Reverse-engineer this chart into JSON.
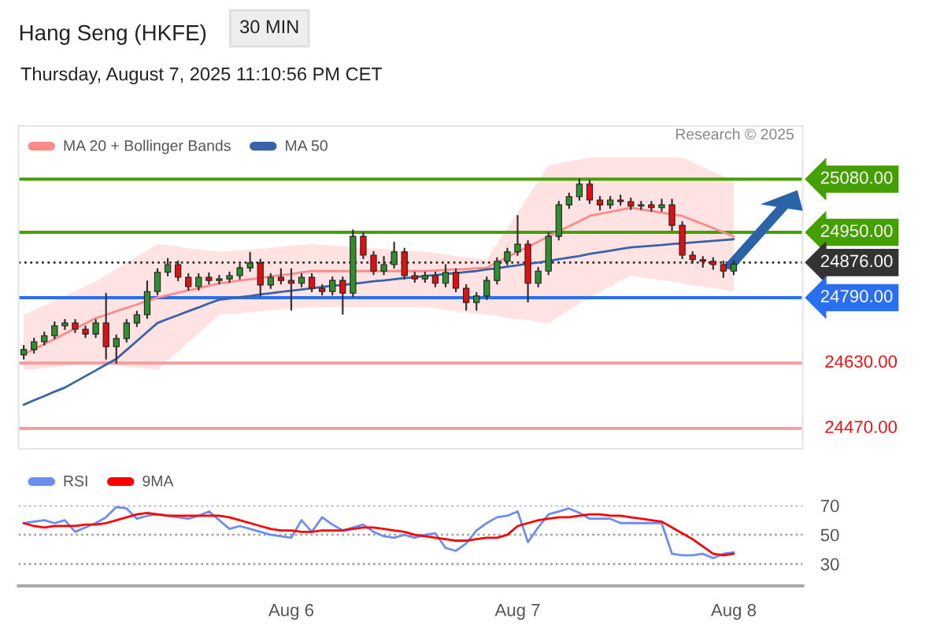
{
  "chart_data": [
    {
      "type": "candlestick",
      "title": "Hang Seng (HKFE)",
      "annotations": [
        "30 MIN",
        "Thursday, August 7, 2025 11:10:56 PM CET",
        "Research © 2025"
      ],
      "categories": [
        null,
        null,
        null,
        null,
        null,
        null,
        null,
        null,
        null,
        null,
        null,
        null,
        null,
        null,
        null,
        null,
        null,
        null,
        null,
        null,
        null,
        null,
        null,
        null,
        null,
        null,
        null,
        null,
        null,
        null,
        null,
        null,
        null,
        null,
        null,
        null,
        null,
        null,
        null,
        null,
        null,
        null,
        null,
        null,
        null,
        null,
        null,
        null,
        null,
        null,
        null,
        null,
        null,
        null,
        null,
        null,
        null,
        null,
        null,
        null,
        null,
        null,
        null,
        null,
        null,
        null,
        null,
        null,
        null,
        null
      ],
      "ohlc": [
        [
          24650,
          24672,
          24640,
          24663
        ],
        [
          24663,
          24690,
          24655,
          24682
        ],
        [
          24682,
          24705,
          24675,
          24697
        ],
        [
          24697,
          24730,
          24690,
          24721
        ],
        [
          24721,
          24736,
          24713,
          24728
        ],
        [
          24728,
          24736,
          24705,
          24713
        ],
        [
          24713,
          24720,
          24693,
          24701
        ],
        [
          24701,
          24736,
          24693,
          24728
        ],
        [
          24728,
          24800,
          24640,
          24670
        ],
        [
          24670,
          24698,
          24630,
          24690
        ],
        [
          24690,
          24736,
          24682,
          24728
        ],
        [
          24728,
          24756,
          24720,
          24748
        ],
        [
          24748,
          24830,
          24740,
          24805
        ],
        [
          24805,
          24860,
          24797,
          24852
        ],
        [
          24852,
          24885,
          24844,
          24871
        ],
        [
          24871,
          24879,
          24832,
          24840
        ],
        [
          24840,
          24848,
          24809,
          24817
        ],
        [
          24817,
          24848,
          24809,
          24840
        ],
        [
          24840,
          24850,
          24824,
          24832
        ],
        [
          24832,
          24844,
          24824,
          24836
        ],
        [
          24836,
          24852,
          24828,
          24844
        ],
        [
          24844,
          24871,
          24836,
          24863
        ],
        [
          24863,
          24900,
          24855,
          24875
        ],
        [
          24875,
          24883,
          24795,
          24821
        ],
        [
          24821,
          24848,
          24813,
          24840
        ],
        [
          24840,
          24860,
          24824,
          24832
        ],
        [
          24832,
          24860,
          24760,
          24825
        ],
        [
          24825,
          24848,
          24817,
          24840
        ],
        [
          24840,
          24848,
          24805,
          24813
        ],
        [
          24813,
          24821,
          24797,
          24805
        ],
        [
          24805,
          24840,
          24797,
          24832
        ],
        [
          24832,
          24840,
          24750,
          24801
        ],
        [
          24801,
          24955,
          24793,
          24940
        ],
        [
          24940,
          24948,
          24886,
          24894
        ],
        [
          24894,
          24902,
          24847,
          24855
        ],
        [
          24855,
          24890,
          24847,
          24871
        ],
        [
          24871,
          24925,
          24863,
          24902
        ],
        [
          24902,
          24910,
          24836,
          24844
        ],
        [
          24844,
          24852,
          24828,
          24836
        ],
        [
          24836,
          24852,
          24828,
          24844
        ],
        [
          24844,
          24852,
          24817,
          24825
        ],
        [
          24825,
          24870,
          24817,
          24852
        ],
        [
          24852,
          24860,
          24805,
          24813
        ],
        [
          24813,
          24821,
          24760,
          24778
        ],
        [
          24778,
          24802,
          24760,
          24794
        ],
        [
          24794,
          24840,
          24786,
          24832
        ],
        [
          24832,
          24887,
          24824,
          24879
        ],
        [
          24879,
          24910,
          24871,
          24902
        ],
        [
          24902,
          24990,
          24894,
          24921
        ],
        [
          24921,
          24929,
          24780,
          24825
        ],
        [
          24825,
          24863,
          24817,
          24855
        ],
        [
          24855,
          24948,
          24847,
          24940
        ],
        [
          24940,
          25025,
          24932,
          25017
        ],
        [
          25017,
          25045,
          25009,
          25037
        ],
        [
          25037,
          25080,
          25029,
          25068
        ],
        [
          25068,
          25076,
          25021,
          25029
        ],
        [
          25029,
          25037,
          25005,
          25017
        ],
        [
          25017,
          25037,
          25009,
          25029
        ],
        [
          25029,
          25040,
          25017,
          25025
        ],
        [
          25025,
          25033,
          25006,
          25014
        ],
        [
          25014,
          25025,
          25006,
          25017
        ],
        [
          25017,
          25025,
          25002,
          25010
        ],
        [
          25010,
          25030,
          25002,
          25017
        ],
        [
          25017,
          25030,
          24955,
          24967
        ],
        [
          24967,
          24975,
          24886,
          24894
        ],
        [
          24894,
          24902,
          24875,
          24883
        ],
        [
          24883,
          24890,
          24865,
          24879
        ],
        [
          24879,
          24887,
          24860,
          24871
        ],
        [
          24871,
          24879,
          24840,
          24855
        ],
        [
          24855,
          24880,
          24847,
          24872
        ]
      ],
      "series": [
        {
          "name": "MA 20 + Bollinger Bands",
          "type": "line",
          "color": "#ff8a8a",
          "values": [
            24651,
            24664,
            24676,
            24689,
            24702,
            24715,
            24727,
            24740,
            24748,
            24757,
            24765,
            24773,
            24782,
            24790,
            24796,
            24802,
            24808,
            24813,
            24819,
            24825,
            24828,
            24832,
            24835,
            24838,
            24842,
            24845,
            24848,
            24852,
            24855,
            24855,
            24855,
            24855,
            24855,
            24855,
            24855,
            24855,
            24855,
            24855,
            24855,
            24855,
            24856,
            24858,
            24859,
            24860,
            24862,
            24863,
            24876,
            24889,
            24902,
            24914,
            24927,
            24940,
            24952,
            24965,
            24977,
            24990,
            24995,
            25000,
            25005,
            25010,
            25006,
            25002,
            24998,
            24994,
            24990,
            24980,
            24970,
            24960,
            24950,
            24940
          ],
          "lower": [
            24613,
            24615,
            24618,
            24620,
            24623,
            24625,
            24628,
            24630,
            24627,
            24624,
            24622,
            24619,
            24616,
            24613,
            24636,
            24658,
            24681,
            24703,
            24726,
            24748,
            24750,
            24752,
            24754,
            24757,
            24759,
            24761,
            24763,
            24765,
            24767,
            24767,
            24767,
            24767,
            24767,
            24767,
            24767,
            24767,
            24767,
            24767,
            24767,
            24767,
            24764,
            24760,
            24757,
            24754,
            24751,
            24748,
            24745,
            24741,
            24738,
            24735,
            24731,
            24728,
            24744,
            24759,
            24775,
            24790,
            24804,
            24817,
            24831,
            24844,
            24840,
            24836,
            24833,
            24829,
            24825,
            24821,
            24817,
            24813,
            24809,
            24805
          ],
          "upper": [
            24748,
            24760,
            24771,
            24783,
            24795,
            24806,
            24818,
            24830,
            24845,
            24860,
            24876,
            24891,
            24906,
            24921,
            24918,
            24915,
            24911,
            24908,
            24905,
            24902,
            24904,
            24906,
            24908,
            24910,
            24912,
            24915,
            24917,
            24919,
            24921,
            24919,
            24918,
            24916,
            24914,
            24912,
            24911,
            24909,
            24907,
            24905,
            24904,
            24902,
            24899,
            24896,
            24892,
            24889,
            24886,
            24883,
            24922,
            24960,
            24999,
            25037,
            25076,
            25114,
            25119,
            25124,
            25128,
            25133,
            25133,
            25133,
            25133,
            25133,
            25133,
            25133,
            25133,
            25133,
            25133,
            25121,
            25110,
            25098,
            25087,
            25075
          ]
        },
        {
          "name": "MA 50",
          "type": "line",
          "color": "#3a62a8",
          "values": [
            24528,
            24539,
            24549,
            24560,
            24570,
            24584,
            24598,
            24612,
            24626,
            24640,
            24662,
            24684,
            24706,
            24728,
            24738,
            24747,
            24757,
            24766,
            24776,
            24785,
            24788,
            24791,
            24794,
            24798,
            24801,
            24804,
            24807,
            24810,
            24813,
            24816,
            24819,
            24821,
            24824,
            24827,
            24830,
            24832,
            24835,
            24838,
            24840,
            24843,
            24845,
            24848,
            24850,
            24853,
            24855,
            24859,
            24862,
            24866,
            24869,
            24873,
            24876,
            24880,
            24884,
            24888,
            24892,
            24897,
            24901,
            24905,
            24909,
            24913,
            24915,
            24917,
            24919,
            24921,
            24923,
            24925,
            24927,
            24929,
            24931,
            24933
          ]
        }
      ],
      "ref_lines": [
        {
          "axis": "y",
          "value": 25080,
          "label": "25080.00",
          "color": "#44a000"
        },
        {
          "axis": "y",
          "value": 24950,
          "label": "24950.00",
          "color": "#44a000"
        },
        {
          "axis": "y",
          "value": 24876,
          "label": "24876.00",
          "color": "#333333",
          "line_style": "dotted"
        },
        {
          "axis": "y",
          "value": 24790,
          "label": "24790.00",
          "color": "#2a6ff0"
        },
        {
          "axis": "y",
          "value": 24630,
          "label": "24630.00",
          "color": "#f4a0a0"
        },
        {
          "axis": "y",
          "value": 24470,
          "label": "24470.00",
          "color": "#f4a0a0"
        }
      ],
      "ylim": [
        24420,
        25210
      ],
      "tick_labels": false,
      "legend": "top left"
    },
    {
      "type": "line",
      "categories": [
        null,
        null,
        null,
        null,
        null,
        null,
        null,
        null,
        null,
        null,
        null,
        null,
        null,
        null,
        null,
        null,
        null,
        null,
        null,
        null,
        null,
        null,
        null,
        null,
        null,
        null,
        "Aug 6",
        null,
        null,
        null,
        null,
        null,
        null,
        null,
        null,
        null,
        null,
        null,
        null,
        null,
        null,
        null,
        null,
        null,
        null,
        null,
        null,
        null,
        "Aug 7",
        null,
        null,
        null,
        null,
        null,
        null,
        null,
        null,
        null,
        null,
        null,
        null,
        null,
        null,
        null,
        null,
        null,
        null,
        null,
        null,
        "Aug 8"
      ],
      "series": [
        {
          "name": "RSI",
          "color": "#6d8ef0",
          "values": [
            58,
            59,
            60,
            58,
            60,
            52,
            55,
            58,
            62,
            69,
            68,
            61,
            63,
            64,
            63,
            62,
            61,
            63,
            66,
            60,
            54,
            56,
            54,
            52,
            50,
            49,
            48,
            60,
            52,
            62,
            57,
            53,
            55,
            57,
            52,
            49,
            48,
            50,
            48,
            50,
            51,
            41,
            39,
            44,
            53,
            58,
            62,
            63,
            66,
            45,
            55,
            64,
            66,
            68,
            65,
            61,
            61,
            61,
            58,
            58,
            58,
            58,
            58,
            37,
            36,
            36,
            37,
            34,
            37,
            38
          ]
        },
        {
          "name": "9MA",
          "color": "#ff0000",
          "values": [
            58,
            56,
            55,
            56,
            56,
            56,
            57,
            57,
            58,
            60,
            62,
            64,
            65,
            64,
            63,
            63,
            63,
            63,
            63,
            63,
            62,
            60,
            58,
            56,
            54,
            53,
            53,
            52,
            52,
            53,
            53,
            53,
            54,
            55,
            55,
            54,
            53,
            52,
            50,
            49,
            48,
            47,
            46,
            46,
            47,
            48,
            48,
            50,
            56,
            58,
            60,
            61,
            62,
            62,
            63,
            64,
            64,
            63,
            63,
            62,
            61,
            60,
            59,
            55,
            51,
            47,
            42,
            37,
            36,
            37
          ]
        }
      ],
      "ylim": [
        15,
        70
      ],
      "yticks": [
        30,
        50,
        70
      ],
      "tick_labels": "xy",
      "grid": "y",
      "legend": "top left"
    }
  ]
}
